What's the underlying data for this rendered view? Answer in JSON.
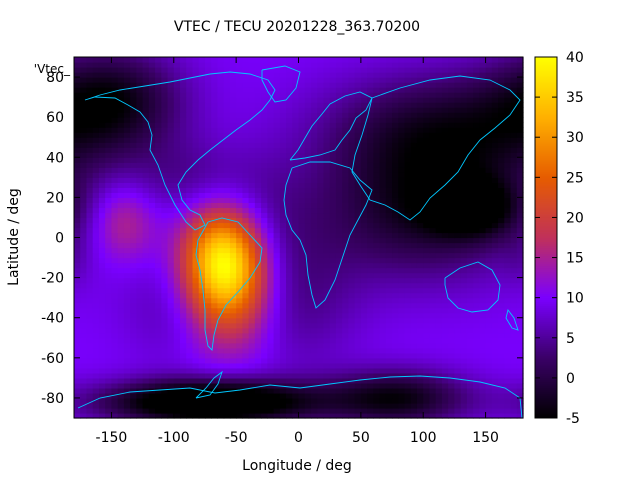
{
  "chart_data": {
    "type": "heatmap",
    "title": "VTEC / TECU 20201228_363.70200",
    "xlabel": "Longitude / deg",
    "ylabel": "Latitude / deg",
    "xlim": [
      -180,
      180
    ],
    "ylim": [
      -90,
      90
    ],
    "x_ticks": [
      -150,
      -100,
      -50,
      0,
      50,
      100,
      150
    ],
    "y_ticks": [
      -80,
      -60,
      -40,
      -20,
      0,
      20,
      40,
      60,
      80
    ],
    "colorbar": {
      "range": [
        -5,
        40
      ],
      "ticks": [
        -5,
        0,
        5,
        10,
        15,
        20,
        25,
        30,
        35,
        40
      ],
      "palette": [
        "#000000",
        "#3a0066",
        "#7a00ff",
        "#c0305a",
        "#e65c00",
        "#ffb000",
        "#ffff00"
      ]
    },
    "legend_entry": "'Vtec_",
    "background_level": 10,
    "features": [
      {
        "lon": -60,
        "lat": -10,
        "value": 39,
        "slon": 22,
        "slat": 18
      },
      {
        "lon": -55,
        "lat": -30,
        "value": 22,
        "slon": 25,
        "slat": 20
      },
      {
        "lon": -140,
        "lat": 8,
        "value": 18,
        "slon": 18,
        "slat": 14
      },
      {
        "lon": -130,
        "lat": -5,
        "value": 10,
        "slon": 32,
        "slat": 26
      },
      {
        "lon": -30,
        "lat": 12,
        "value": 6,
        "slon": 30,
        "slat": 20
      },
      {
        "lon": -90,
        "lat": 30,
        "value": 5,
        "slon": 35,
        "slat": 14
      },
      {
        "lon": 0,
        "lat": -30,
        "value": 4,
        "slon": 35,
        "slat": 25
      },
      {
        "lon": -100,
        "lat": -35,
        "value": 6,
        "slon": 30,
        "slat": 20
      },
      {
        "lon": 178,
        "lat": -10,
        "value": 8,
        "slon": 10,
        "slat": 10
      },
      {
        "lon": -70,
        "lat": -82,
        "value": -15,
        "slon": 60,
        "slat": 8
      },
      {
        "lon": 80,
        "lat": -80,
        "value": -5,
        "slon": 40,
        "slat": 10
      },
      {
        "lon": -150,
        "lat": 70,
        "value": -3,
        "slon": 40,
        "slat": 18
      },
      {
        "lon": 100,
        "lat": 15,
        "value": -4,
        "slon": 60,
        "slat": 25
      },
      {
        "lon": 140,
        "lat": 15,
        "value": -3,
        "slon": 25,
        "slat": 10
      },
      {
        "lon": 120,
        "lat": 55,
        "value": -2,
        "slon": 70,
        "slat": 20
      }
    ]
  }
}
